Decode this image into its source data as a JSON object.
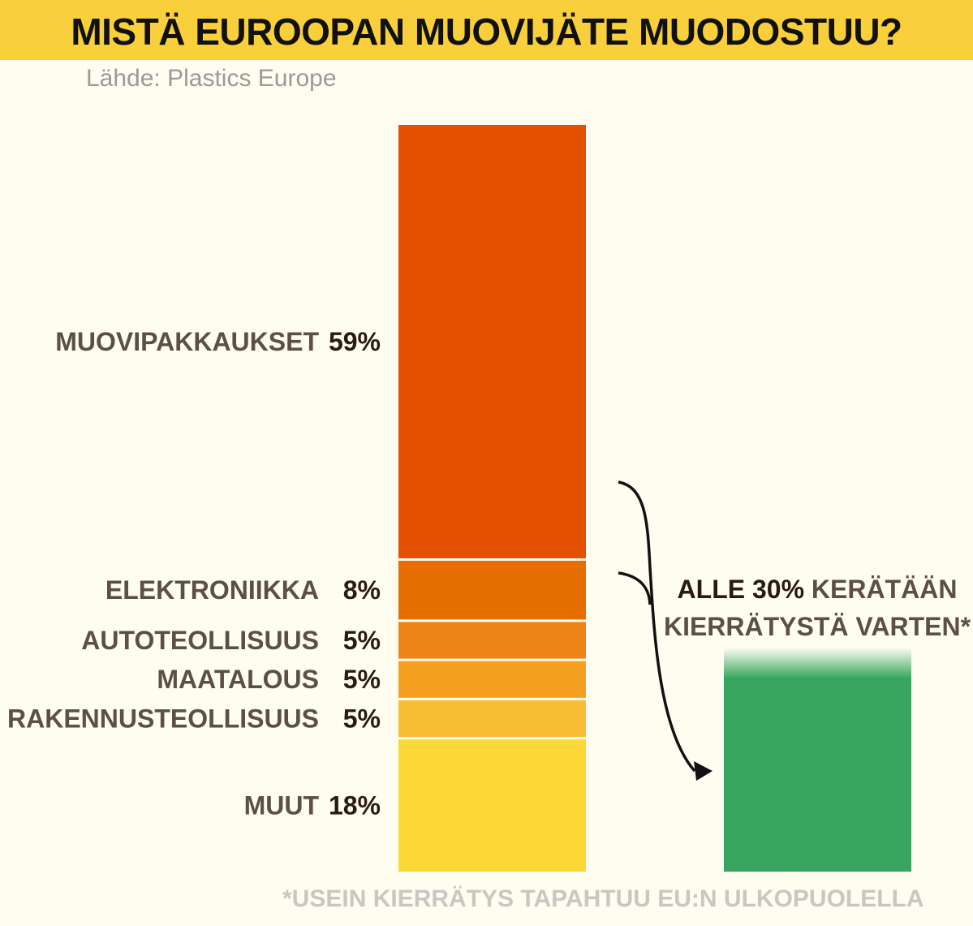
{
  "title": "MISTÄ EUROOPAN MUOVIJÄTE MUODOSTUU?",
  "source": "Lähde: Plastics Europe",
  "chart_data": {
    "type": "bar",
    "stacked": true,
    "categories": [
      "MUOVIPAKKAUKSET",
      "ELEKTRONIIKKA",
      "AUTOTEOLLISUUS",
      "MAATALOUS",
      "RAKENNUSTEOLLISUUS",
      "MUUT"
    ],
    "values": [
      59,
      8,
      5,
      5,
      5,
      18
    ],
    "value_labels": [
      "59%",
      "8%",
      "5%",
      "5%",
      "5%",
      "18%"
    ],
    "colors": [
      "#e35000",
      "#e66d00",
      "#ee8418",
      "#f5a020",
      "#f9bd36",
      "#fcd836"
    ],
    "recycled": {
      "value": 30,
      "label_part1": "ALLE 30%",
      "label_part2": "KERÄTÄÄN",
      "label_line2": "KIERRÄTYSTÄ VARTEN*",
      "color": "#37a55e"
    }
  },
  "footnote": "*USEIN KIERRÄTYS TAPAHTUU EU:N ULKOPUOLELLA"
}
